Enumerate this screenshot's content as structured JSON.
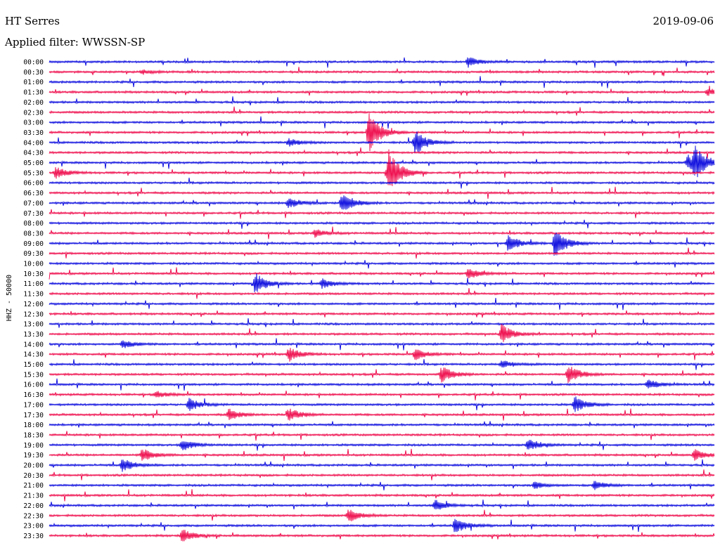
{
  "header": {
    "station": "HT Serres",
    "date": "2019-09-06",
    "filter": "Applied filter: WWSSN-SP"
  },
  "chart_data": {
    "type": "line",
    "title": "HT Serres",
    "subtitle": "Applied filter: WWSSN-SP",
    "ylabel": "HHZ - 50000",
    "colors": [
      "#0000dd",
      "#ee0044"
    ],
    "rows": [
      "00:00",
      "00:30",
      "01:00",
      "01:30",
      "02:00",
      "02:30",
      "03:00",
      "03:30",
      "04:00",
      "04:30",
      "05:00",
      "05:30",
      "06:00",
      "06:30",
      "07:00",
      "07:30",
      "08:00",
      "08:30",
      "09:00",
      "09:30",
      "10:00",
      "10:30",
      "11:00",
      "11:30",
      "12:00",
      "12:30",
      "13:00",
      "13:30",
      "14:00",
      "14:30",
      "15:00",
      "15:30",
      "16:00",
      "16:30",
      "17:00",
      "17:30",
      "18:00",
      "18:30",
      "19:00",
      "19:30",
      "20:00",
      "20:30",
      "21:00",
      "21:30",
      "22:00",
      "22:30",
      "23:00",
      "23:30"
    ],
    "events": [
      {
        "row": 0,
        "t": 0.63,
        "amp": 7
      },
      {
        "row": 1,
        "t": 0.14,
        "amp": 3
      },
      {
        "row": 3,
        "t": 0.99,
        "amp": 5
      },
      {
        "row": 7,
        "t": 0.48,
        "amp": 30
      },
      {
        "row": 8,
        "t": 0.55,
        "amp": 18
      },
      {
        "row": 8,
        "t": 0.36,
        "amp": 6
      },
      {
        "row": 10,
        "t": 0.97,
        "amp": 22
      },
      {
        "row": 10,
        "t": 0.96,
        "amp": 10
      },
      {
        "row": 11,
        "t": 0.51,
        "amp": 36
      },
      {
        "row": 11,
        "t": 0.01,
        "amp": 8
      },
      {
        "row": 14,
        "t": 0.44,
        "amp": 16
      },
      {
        "row": 14,
        "t": 0.36,
        "amp": 8
      },
      {
        "row": 17,
        "t": 0.4,
        "amp": 6
      },
      {
        "row": 18,
        "t": 0.76,
        "amp": 22
      },
      {
        "row": 18,
        "t": 0.69,
        "amp": 12
      },
      {
        "row": 21,
        "t": 0.63,
        "amp": 8
      },
      {
        "row": 22,
        "t": 0.31,
        "amp": 16
      },
      {
        "row": 22,
        "t": 0.41,
        "amp": 7
      },
      {
        "row": 27,
        "t": 0.68,
        "amp": 14
      },
      {
        "row": 28,
        "t": 0.11,
        "amp": 6
      },
      {
        "row": 29,
        "t": 0.36,
        "amp": 10
      },
      {
        "row": 29,
        "t": 0.55,
        "amp": 8
      },
      {
        "row": 30,
        "t": 0.68,
        "amp": 6
      },
      {
        "row": 31,
        "t": 0.59,
        "amp": 12
      },
      {
        "row": 31,
        "t": 0.78,
        "amp": 14
      },
      {
        "row": 32,
        "t": 0.9,
        "amp": 8
      },
      {
        "row": 33,
        "t": 0.16,
        "amp": 5
      },
      {
        "row": 34,
        "t": 0.21,
        "amp": 9
      },
      {
        "row": 34,
        "t": 0.79,
        "amp": 12
      },
      {
        "row": 35,
        "t": 0.36,
        "amp": 10
      },
      {
        "row": 35,
        "t": 0.27,
        "amp": 8
      },
      {
        "row": 38,
        "t": 0.2,
        "amp": 9
      },
      {
        "row": 38,
        "t": 0.72,
        "amp": 9
      },
      {
        "row": 39,
        "t": 0.14,
        "amp": 9
      },
      {
        "row": 39,
        "t": 0.97,
        "amp": 8
      },
      {
        "row": 40,
        "t": 0.11,
        "amp": 10
      },
      {
        "row": 42,
        "t": 0.73,
        "amp": 5
      },
      {
        "row": 42,
        "t": 0.82,
        "amp": 6
      },
      {
        "row": 44,
        "t": 0.58,
        "amp": 8
      },
      {
        "row": 45,
        "t": 0.45,
        "amp": 10
      },
      {
        "row": 46,
        "t": 0.61,
        "amp": 12
      },
      {
        "row": 47,
        "t": 0.2,
        "amp": 10
      }
    ]
  }
}
